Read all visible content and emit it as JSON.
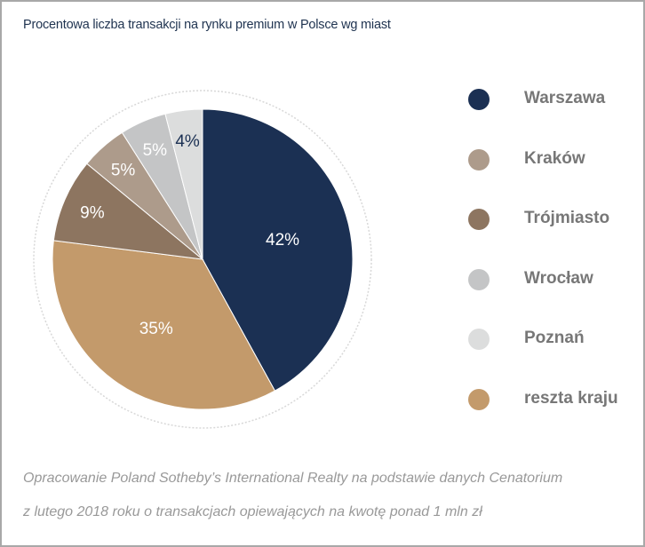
{
  "chart_data": {
    "type": "pie",
    "title": "Procentowa liczba transakcji na rynku premium w Polsce wg miast",
    "slices": [
      {
        "name": "Warszawa",
        "value": 42,
        "label": "42%",
        "color": "#1b3053"
      },
      {
        "name": "reszta kraju",
        "value": 35,
        "label": "35%",
        "color": "#c39a6b"
      },
      {
        "name": "Trójmiasto",
        "value": 9,
        "label": "9%",
        "color": "#8d7560"
      },
      {
        "name": "Kraków",
        "value": 5,
        "label": "5%",
        "color": "#ad9b8b"
      },
      {
        "name": "Wrocław",
        "value": 5,
        "label": "5%",
        "color": "#c4c5c6"
      },
      {
        "name": "Poznań",
        "value": 4,
        "label": "4%",
        "color": "#dcdddd"
      }
    ],
    "legend": [
      "Warszawa",
      "Kraków",
      "Trójmiasto",
      "Wrocław",
      "Poznań",
      "reszta kraju"
    ],
    "legend_placement": "right"
  },
  "notes": [
    "Opracowanie Poland Sotheby’s International Realty na podstawie danych Cenatorium",
    "z lutego 2018 roku o transakcjach opiewających na kwotę ponad 1 mln zł"
  ]
}
